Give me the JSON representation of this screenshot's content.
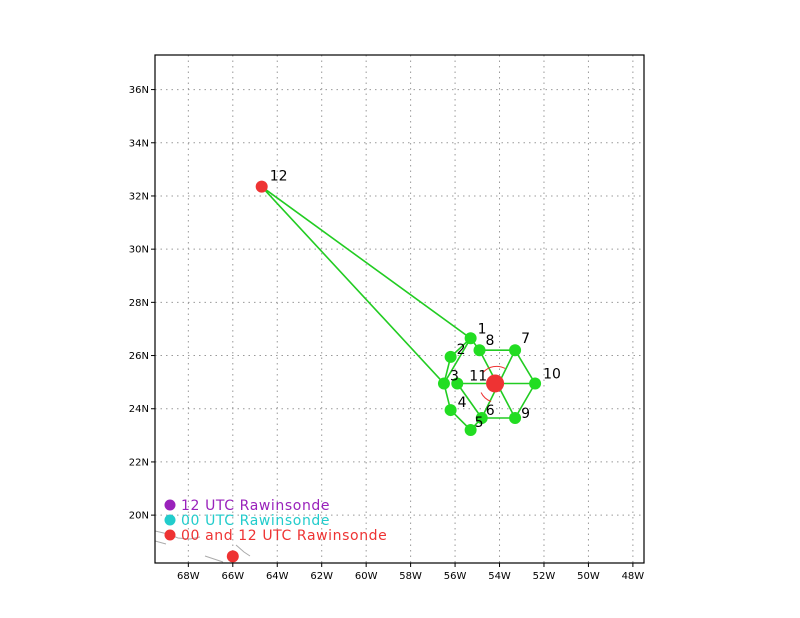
{
  "map": {
    "lon_range": [
      -69.5,
      -47.5
    ],
    "lat_range": [
      18.2,
      37.3
    ],
    "lon_ticks": [
      -68,
      -66,
      -64,
      -62,
      -60,
      -58,
      -56,
      -54,
      -52,
      -50,
      -48
    ],
    "lon_labels": [
      "68W",
      "66W",
      "64W",
      "62W",
      "60W",
      "58W",
      "56W",
      "54W",
      "52W",
      "50W",
      "48W"
    ],
    "lat_ticks": [
      20,
      22,
      24,
      26,
      28,
      30,
      32,
      34,
      36
    ],
    "lat_labels": [
      "20N",
      "22N",
      "24N",
      "26N",
      "28N",
      "30N",
      "32N",
      "34N",
      "36N"
    ],
    "grid": true,
    "grid_color": "#999999",
    "line_color": "#22cc22",
    "land_color": "#aaaaaa"
  },
  "drops": [
    {
      "id": "1",
      "lon": -55.3,
      "lat": 26.65
    },
    {
      "id": "2",
      "lon": -56.2,
      "lat": 25.95
    },
    {
      "id": "3",
      "lon": -56.5,
      "lat": 24.95
    },
    {
      "id": "4",
      "lon": -56.2,
      "lat": 23.95
    },
    {
      "id": "5",
      "lon": -55.3,
      "lat": 23.2
    },
    {
      "id": "6",
      "lon": -54.8,
      "lat": 23.65
    },
    {
      "id": "7",
      "lon": -53.3,
      "lat": 26.2
    },
    {
      "id": "8",
      "lon": -54.9,
      "lat": 26.2
    },
    {
      "id": "9",
      "lon": -53.3,
      "lat": 23.65
    },
    {
      "id": "10",
      "lon": -52.4,
      "lat": 24.95
    },
    {
      "id": "11",
      "lon": -55.9,
      "lat": 24.95
    }
  ],
  "paths": [
    [
      "12",
      "1",
      "3",
      "12"
    ],
    [
      "3",
      "2",
      "1",
      "8",
      "7",
      "10",
      "9",
      "6",
      "5",
      "4",
      "3"
    ],
    [
      "11",
      "10"
    ],
    [
      "8",
      "9"
    ],
    [
      "7",
      "6"
    ],
    [
      "11",
      "6"
    ]
  ],
  "special_points": [
    {
      "id": "12",
      "lon": -64.7,
      "lat": 32.35,
      "color": "#ee3333"
    },
    {
      "id": "center",
      "lon": -54.2,
      "lat": 24.95,
      "color": "#ee3333"
    },
    {
      "id": "",
      "lon": -66.0,
      "lat": 18.45,
      "color": "#ee3333"
    }
  ],
  "legend": [
    {
      "label": "12 UTC Rawinsonde",
      "color": "#9922bb"
    },
    {
      "label": "00 UTC Rawinsonde",
      "color": "#22cccc"
    },
    {
      "label": "00 and 12 UTC Rawinsonde",
      "color": "#ee3333"
    }
  ]
}
